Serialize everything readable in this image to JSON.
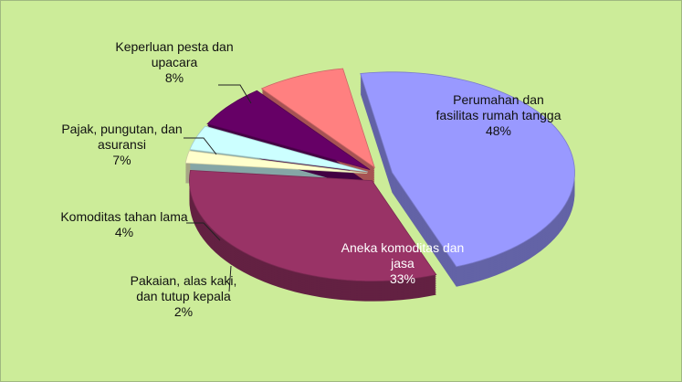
{
  "chart_data": {
    "type": "pie",
    "categories": [
      "Perumahan dan fasilitas rumah tangga",
      "Aneka komoditas dan jasa",
      "Pakaian, alas kaki, dan tutup kepala",
      "Komoditas tahan lama",
      "Pajak, pungutan, dan asuransi",
      "Keperluan pesta dan upacara"
    ],
    "values": [
      48,
      33,
      2,
      4,
      7,
      8
    ],
    "value_labels": [
      "48%",
      "33%",
      "2%",
      "4%",
      "7%",
      "8%"
    ],
    "colors": [
      "#9999ff",
      "#993366",
      "#ffffcc",
      "#ccffff",
      "#660066",
      "#ff8080"
    ]
  }
}
